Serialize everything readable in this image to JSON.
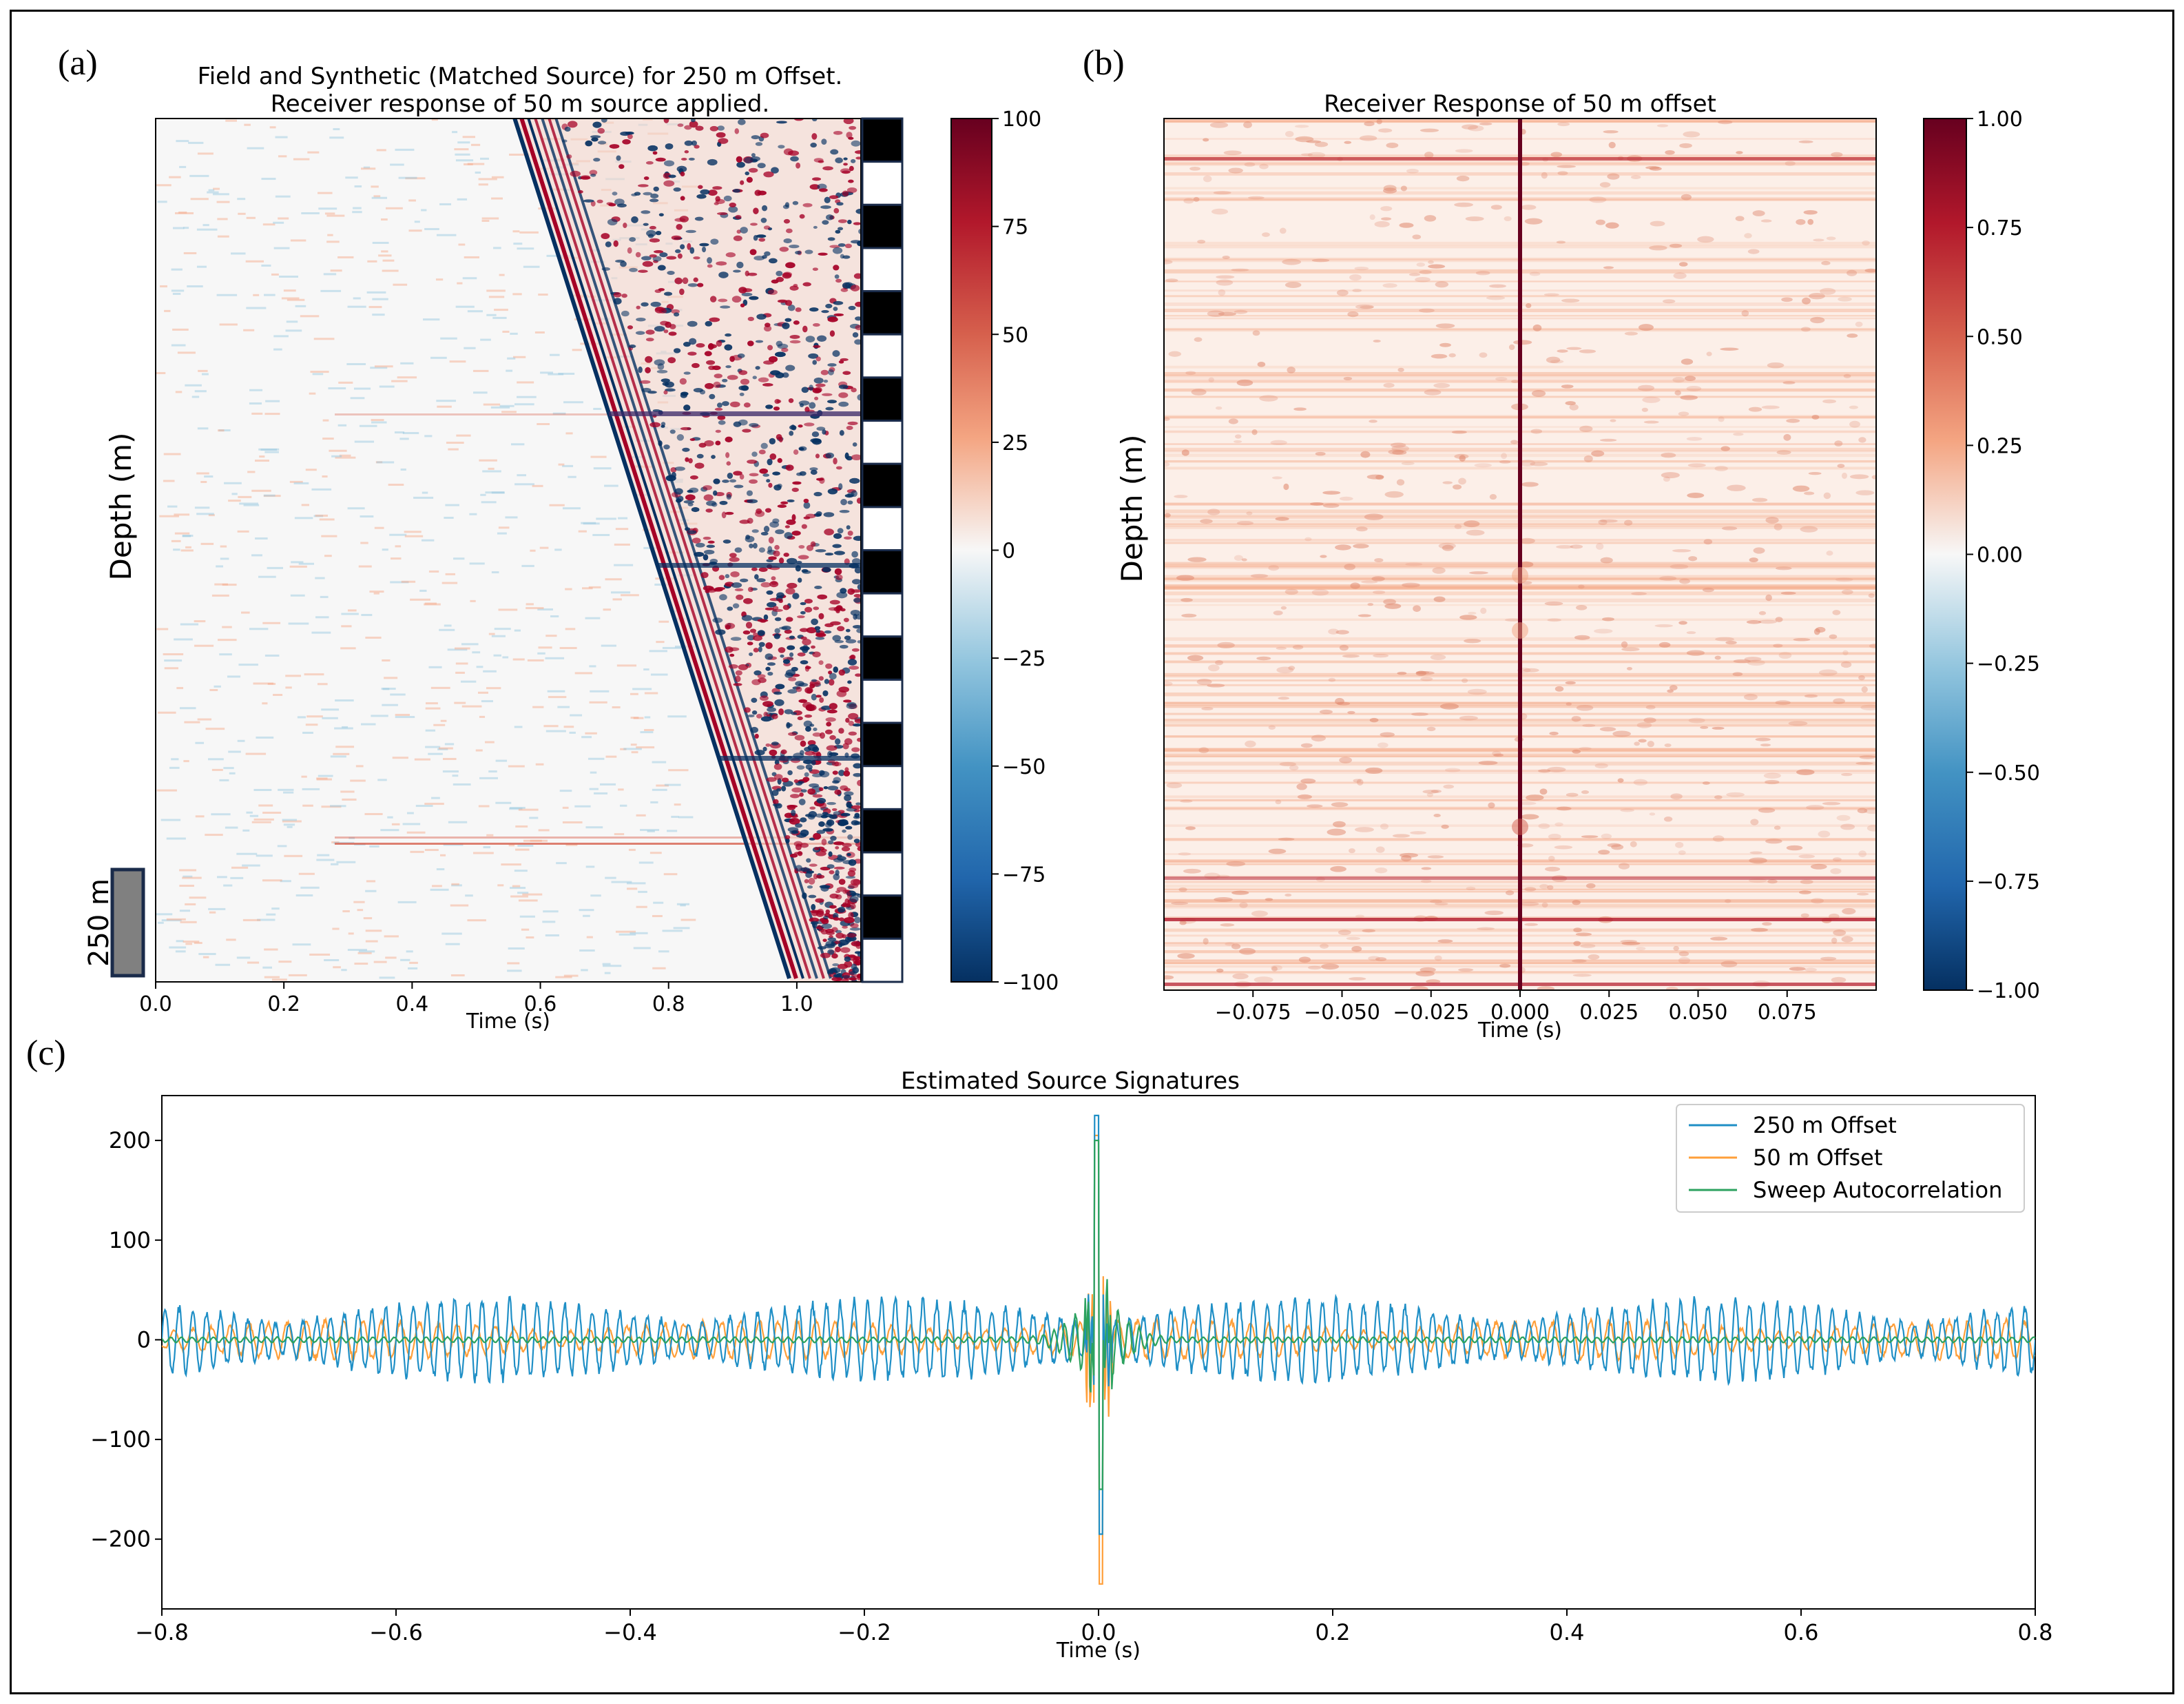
{
  "figure": {
    "panel_a_label": "(a)",
    "panel_b_label": "(b)",
    "panel_c_label": "(c)"
  },
  "colors": {
    "red": "#a50026",
    "blue": "#053061",
    "line_250": "#1f8fc6",
    "line_50": "#ff9f3a",
    "line_sweep": "#2ca25f"
  },
  "chart_data": [
    {
      "id": "a",
      "type": "heatmap",
      "title_line1": "Field and Synthetic (Matched Source) for 250 m Offset.",
      "title_line2": "Receiver response of 50 m source applied.",
      "xlabel": "Time (s)",
      "ylabel": "Depth (m)",
      "xlim": [
        0.0,
        1.1
      ],
      "xticks": [
        "0.0",
        "0.2",
        "0.4",
        "0.6",
        "0.8",
        "1.0"
      ],
      "xtick_values": [
        0.0,
        0.2,
        0.4,
        0.6,
        0.8,
        1.0
      ],
      "colorbar": {
        "min": -100,
        "max": 100,
        "ticks": [
          100,
          75,
          50,
          25,
          0,
          -25,
          -50,
          -75,
          -100
        ],
        "labels": [
          "100",
          "75",
          "50",
          "25",
          "0",
          "−25",
          "−50",
          "−75",
          "−100"
        ]
      },
      "first_arrival": {
        "top_time_s": 0.56,
        "bottom_time_s": 0.99
      },
      "scale_bar_label": "250 m",
      "checker_segments": 20
    },
    {
      "id": "b",
      "type": "heatmap",
      "title": "Receiver Response of 50 m offset",
      "xlabel": "Time (s)",
      "ylabel": "Depth (m)",
      "xlim": [
        -0.1,
        0.1
      ],
      "xticks": [
        "−0.075",
        "−0.050",
        "−0.025",
        "0.000",
        "0.025",
        "0.050",
        "0.075"
      ],
      "xtick_values": [
        -0.075,
        -0.05,
        -0.025,
        0.0,
        0.025,
        0.05,
        0.075
      ],
      "peak_time_s": 0.0,
      "colorbar": {
        "min": -1.0,
        "max": 1.0,
        "ticks": [
          1.0,
          0.75,
          0.5,
          0.25,
          0.0,
          -0.25,
          -0.5,
          -0.75,
          -1.0
        ],
        "labels": [
          "1.00",
          "0.75",
          "0.50",
          "0.25",
          "0.00",
          "−0.25",
          "−0.50",
          "−0.75",
          "−1.00"
        ]
      }
    },
    {
      "id": "c",
      "type": "line",
      "title": "Estimated Source Signatures",
      "xlabel": "Time (s)",
      "ylabel": "",
      "xlim": [
        -0.8,
        0.8
      ],
      "ylim": [
        -270,
        245
      ],
      "xticks": [
        "−0.8",
        "−0.6",
        "−0.4",
        "−0.2",
        "0.0",
        "0.2",
        "0.4",
        "0.6",
        "0.8"
      ],
      "xtick_values": [
        -0.8,
        -0.6,
        -0.4,
        -0.2,
        0.0,
        0.2,
        0.4,
        0.6,
        0.8
      ],
      "yticks": [
        "200",
        "100",
        "0",
        "−100",
        "−200"
      ],
      "ytick_values": [
        200,
        100,
        0,
        -100,
        -200
      ],
      "legend_position": "top-right",
      "series": [
        {
          "name": "250 m Offset",
          "peak": 225,
          "trough": -195,
          "noise_amp": 45
        },
        {
          "name": "50 m Offset",
          "peak": 205,
          "trough": -245,
          "noise_amp": 22
        },
        {
          "name": "Sweep Autocorrelation",
          "peak": 200,
          "trough": -150,
          "noise_amp": 3
        }
      ]
    }
  ]
}
